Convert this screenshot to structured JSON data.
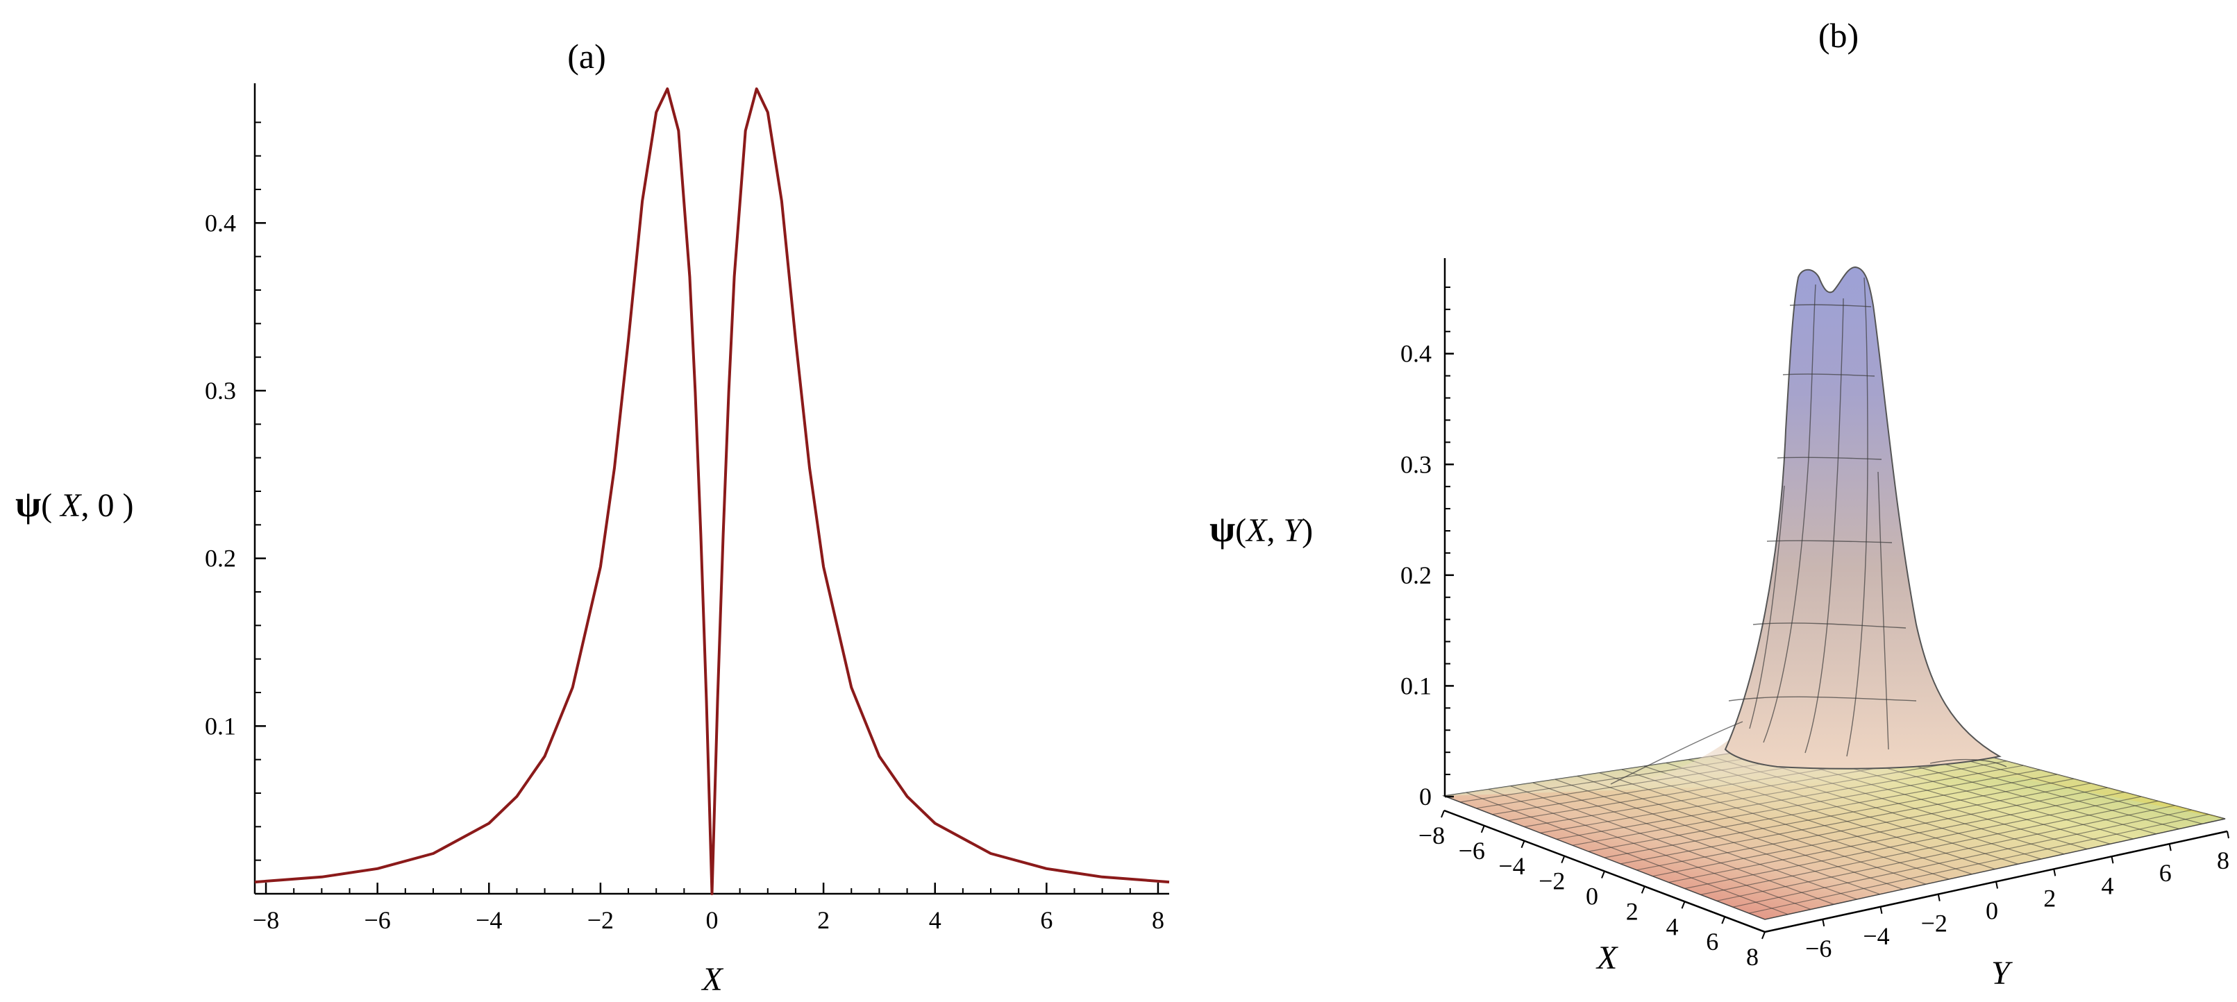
{
  "colors": {
    "curve": "#8b1a1a",
    "axis": "#000000",
    "mesh": "#333333"
  },
  "panel_a": {
    "panel_label": "(a)",
    "ylabel_psi": "ψ",
    "ylabel_rest_open": "( ",
    "ylabel_x": "X",
    "ylabel_rest_close": ", 0 )",
    "xlabel": "X"
  },
  "panel_b": {
    "panel_label": "(b)",
    "zlabel_psi": "ψ",
    "zlabel_rest_open": "(",
    "zlabel_x": "X",
    "zlabel_comma": ", ",
    "zlabel_y": "Y",
    "zlabel_close": ")",
    "xlabel": "X",
    "ylabel": "Y"
  },
  "chart_data": [
    {
      "type": "line",
      "title": "(a)",
      "xlabel": "X",
      "ylabel": "ψ( X, 0 )",
      "xlim": [
        -8.2,
        8.2
      ],
      "ylim": [
        0.0,
        0.48
      ],
      "x_ticks": [
        -8,
        -6,
        -4,
        -2,
        0,
        2,
        4,
        6,
        8
      ],
      "x_tick_labels": [
        "−8",
        "−6",
        "−4",
        "−2",
        "0",
        "2",
        "4",
        "6",
        "8"
      ],
      "y_ticks": [
        0.1,
        0.2,
        0.3,
        0.4
      ],
      "y_tick_labels": [
        "0.1",
        "0.2",
        "0.3",
        "0.4"
      ],
      "grid": false,
      "series": [
        {
          "x": [
            -8.2,
            -7,
            -6,
            -5,
            -4,
            -3.5,
            -3,
            -2.5,
            -2,
            -1.75,
            -1.5,
            -1.25,
            -1,
            -0.8,
            -0.6,
            -0.4,
            -0.3,
            -0.2,
            -0.1,
            0,
            0.1,
            0.2,
            0.3,
            0.4,
            0.6,
            0.8,
            1,
            1.25,
            1.5,
            1.75,
            2,
            2.5,
            3,
            3.5,
            4,
            5,
            6,
            7,
            8.2
          ],
          "y": [
            0.007,
            0.01,
            0.015,
            0.024,
            0.042,
            0.058,
            0.082,
            0.123,
            0.195,
            0.254,
            0.33,
            0.413,
            0.466,
            0.48,
            0.455,
            0.368,
            0.299,
            0.214,
            0.115,
            0.0,
            0.115,
            0.214,
            0.299,
            0.368,
            0.455,
            0.48,
            0.466,
            0.413,
            0.33,
            0.254,
            0.195,
            0.123,
            0.082,
            0.058,
            0.042,
            0.024,
            0.015,
            0.01,
            0.007
          ]
        }
      ]
    },
    {
      "type": "surface",
      "title": "(b)",
      "xlabel": "X",
      "ylabel": "Y",
      "zlabel": "ψ(X, Y)",
      "xlim": [
        -8,
        8
      ],
      "ylim": [
        -8,
        8
      ],
      "zlim": [
        0,
        0.48
      ],
      "x_tick_labels": [
        "−8",
        "−6",
        "−4",
        "−2",
        "0",
        "2",
        "4",
        "6",
        "8"
      ],
      "y_tick_labels": [
        "−6",
        "−4",
        "−2",
        "0",
        "2",
        "4",
        "6",
        "8"
      ],
      "z_ticks": [
        0,
        0.1,
        0.2,
        0.3,
        0.4
      ],
      "z_tick_labels": [
        "0",
        "0.1",
        "0.2",
        "0.3",
        "0.4"
      ],
      "peak_value": 0.48,
      "peaks_at_x": [
        -0.8,
        0.8
      ],
      "grid": false
    }
  ]
}
